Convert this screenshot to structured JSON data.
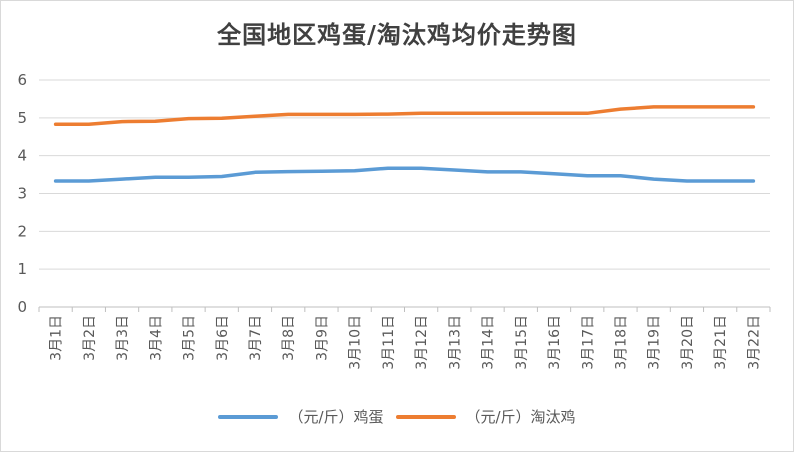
{
  "chart_data": {
    "type": "line",
    "title": "全国地区鸡蛋/淘汰鸡均价走势图",
    "categories": [
      "3月1日",
      "3月2日",
      "3月3日",
      "3月4日",
      "3月5日",
      "3月6日",
      "3月7日",
      "3月8日",
      "3月9日",
      "3月10日",
      "3月11日",
      "3月12日",
      "3月13日",
      "3月14日",
      "3月15日",
      "3月16日",
      "3月17日",
      "3月18日",
      "3月19日",
      "3月20日",
      "3月21日",
      "3月22日"
    ],
    "ylim": [
      0,
      6
    ],
    "yticks": [
      "0",
      "1",
      "2",
      "3",
      "4",
      "5",
      "6"
    ],
    "grid": true,
    "legend_position": "bottom",
    "series": [
      {
        "name": "（元/斤）鸡蛋",
        "color": "#5b9bd5",
        "values": [
          3.33,
          3.33,
          3.38,
          3.43,
          3.43,
          3.45,
          3.56,
          3.58,
          3.59,
          3.6,
          3.67,
          3.67,
          3.62,
          3.57,
          3.57,
          3.52,
          3.47,
          3.47,
          3.38,
          3.33,
          3.33,
          3.33
        ]
      },
      {
        "name": "（元/斤）淘汰鸡",
        "color": "#ed7d31",
        "values": [
          4.83,
          4.83,
          4.9,
          4.91,
          4.98,
          4.99,
          5.04,
          5.09,
          5.09,
          5.09,
          5.1,
          5.12,
          5.12,
          5.12,
          5.12,
          5.12,
          5.12,
          5.23,
          5.29,
          5.29,
          5.29,
          5.29
        ]
      }
    ]
  }
}
